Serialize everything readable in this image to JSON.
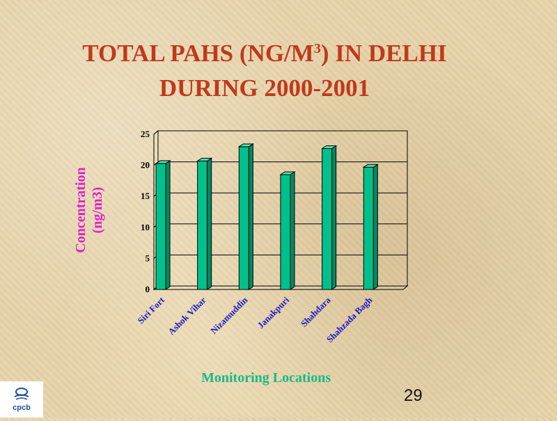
{
  "title": {
    "line1_prefix": "TOTAL PAHS (NG/M",
    "line1_sup": "3",
    "line1_suffix": ") IN DELHI",
    "line2": "DURING 2000-2001"
  },
  "logo": {
    "text": "cpcb",
    "icon": "cpcb-logo-icon"
  },
  "page_number": "29",
  "colors": {
    "title": "#c0391b",
    "bar": "#00c08b",
    "ylabel": "#e020c8",
    "xlabel": "#19b98a",
    "category_labels": "#1818c8"
  },
  "chart_data": {
    "type": "bar",
    "categories": [
      "Siri Fort",
      "Ashok Vihar",
      "Nizamuddin",
      "Janakpuri",
      "Shahdara",
      "Shahzada Bagh"
    ],
    "values": [
      20.3,
      20.7,
      23.0,
      18.5,
      22.7,
      19.7
    ],
    "title": "",
    "xlabel": "Monitoring Locations",
    "ylabel_line1": "Concentration",
    "ylabel_line2": "(ng/m3)",
    "ylim": [
      0,
      25
    ],
    "yticks": [
      0,
      5,
      10,
      15,
      20,
      25
    ],
    "grid": true,
    "legend": "none"
  }
}
